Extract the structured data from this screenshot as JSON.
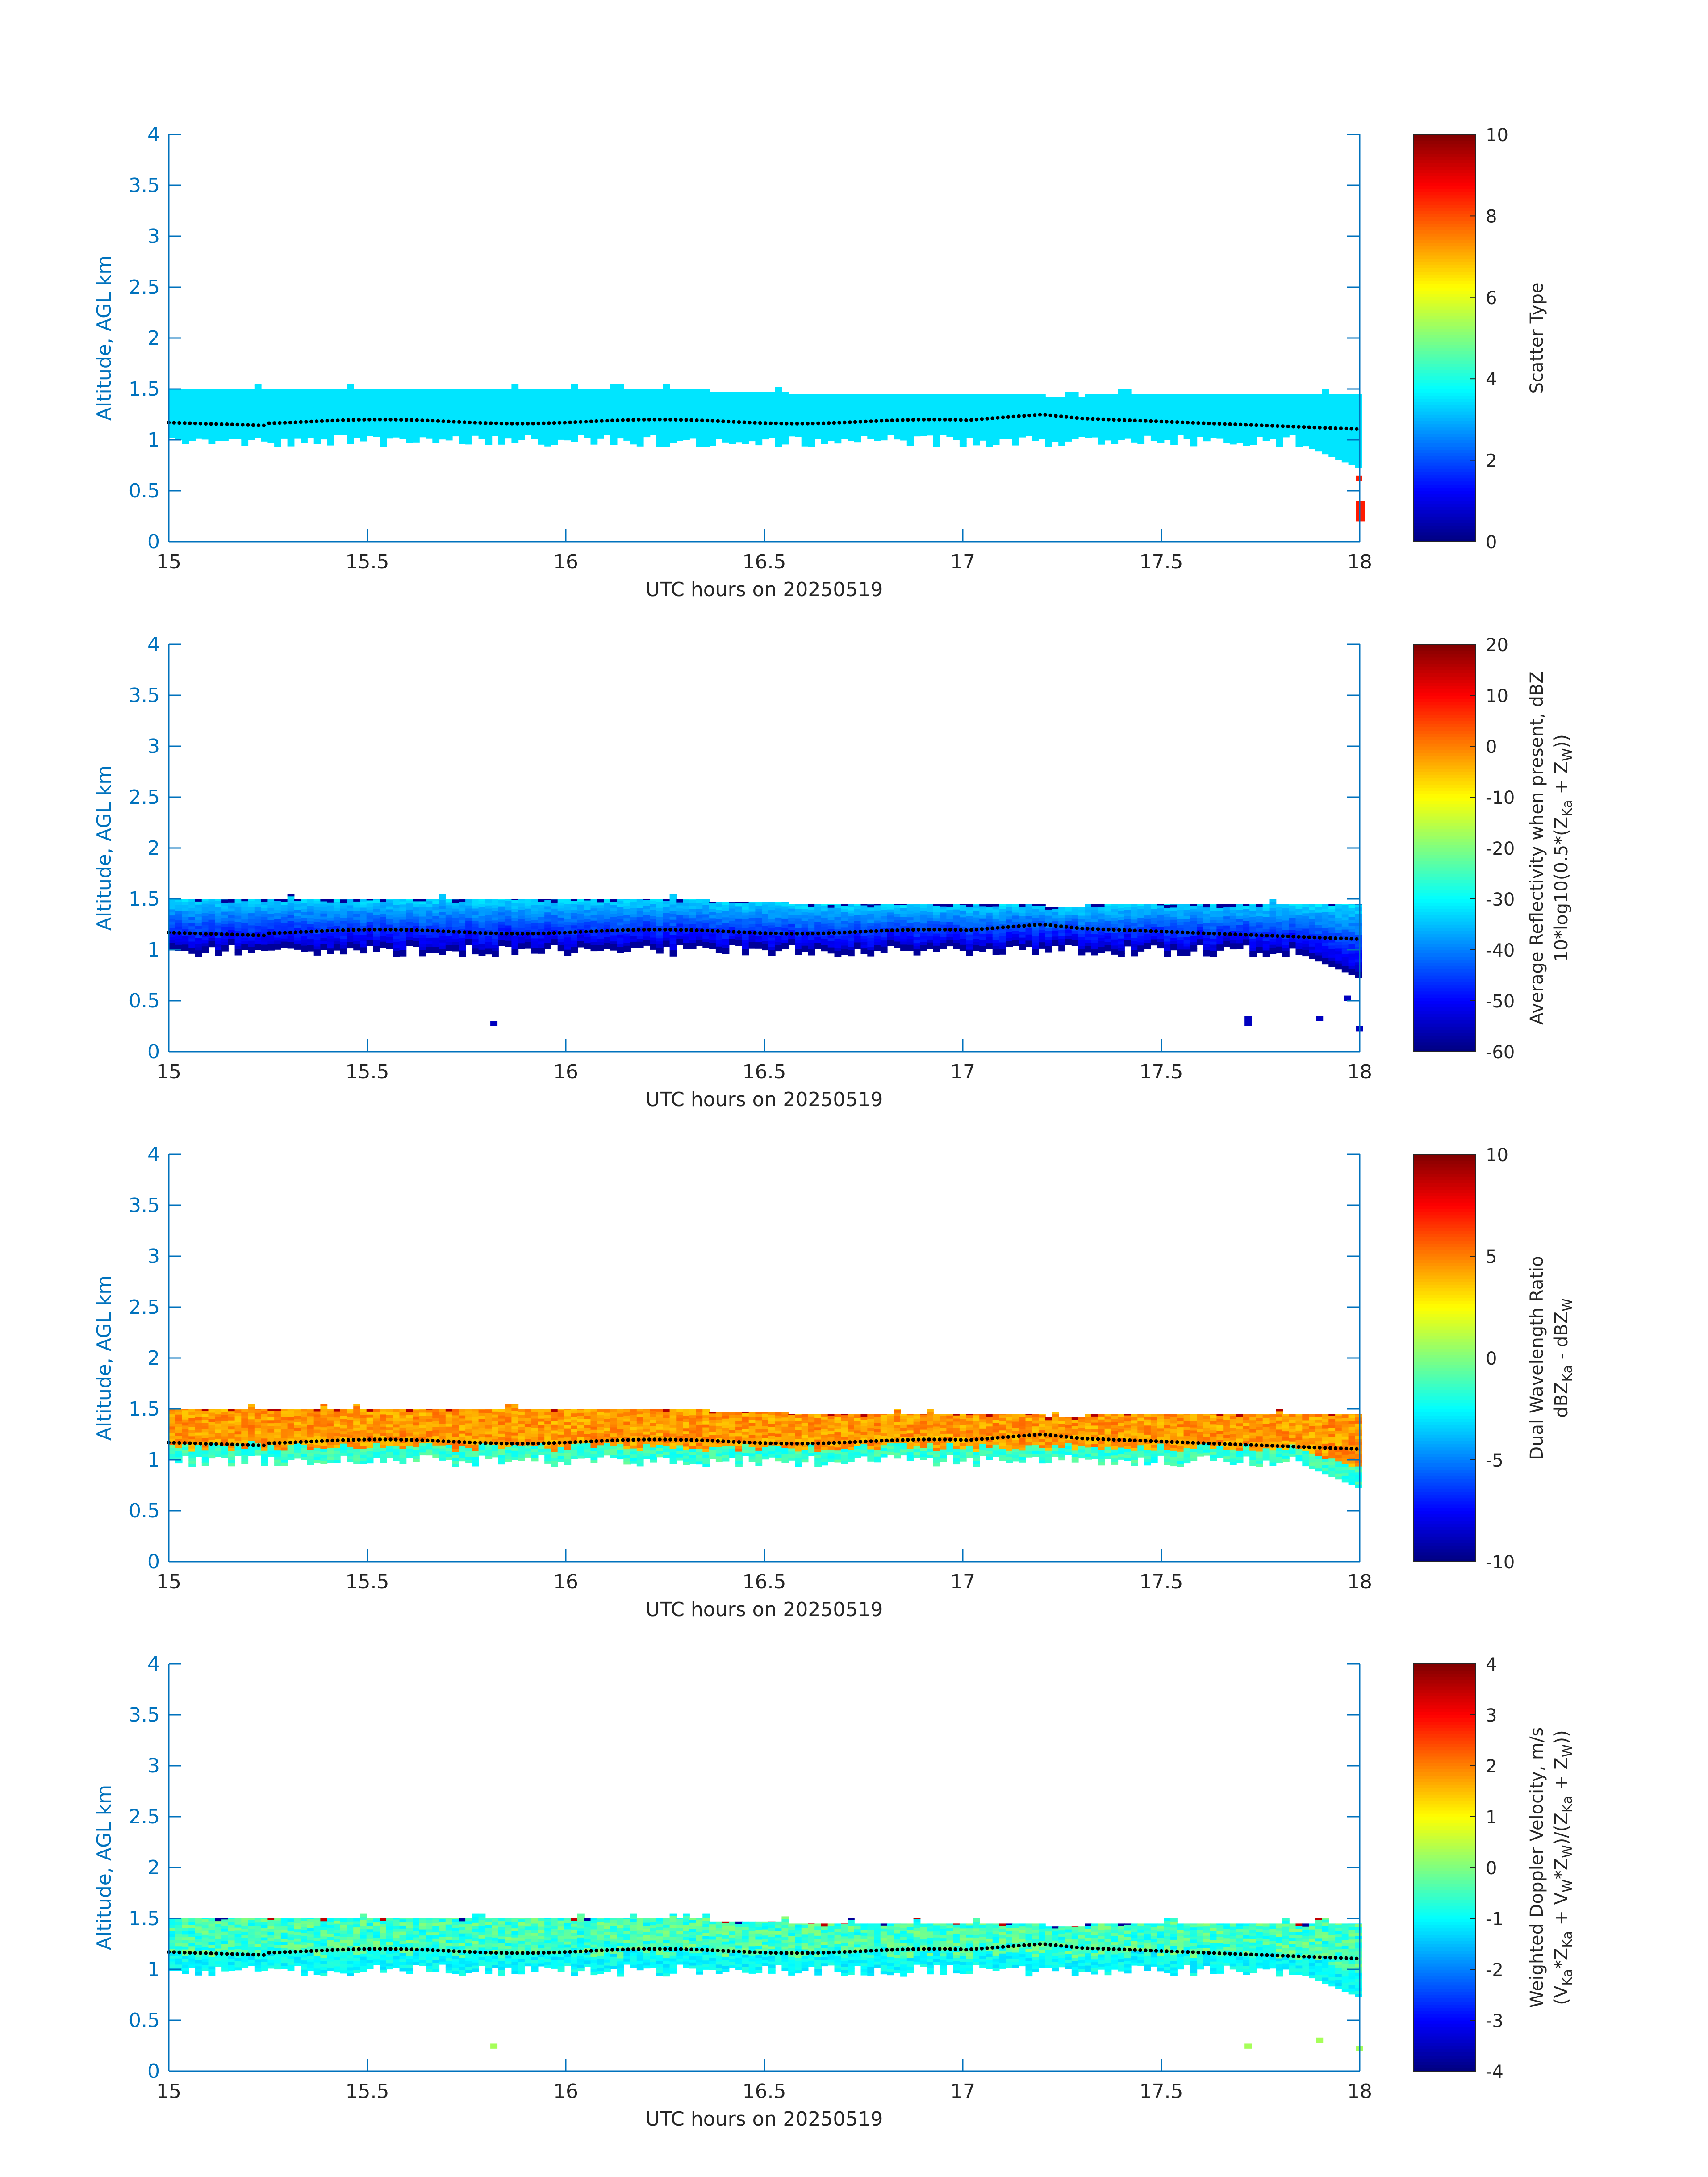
{
  "chart_data": [
    {
      "type": "heatmap",
      "title": "",
      "xlabel": "UTC hours on 20250519",
      "ylabel": "Altitude, AGL km",
      "xlim": [
        15,
        18
      ],
      "ylim": [
        0,
        4
      ],
      "xticks": [
        15,
        15.5,
        16,
        16.5,
        17,
        17.5,
        18
      ],
      "yticks": [
        0,
        0.5,
        1,
        1.5,
        2,
        2.5,
        3,
        3.5,
        4
      ],
      "colorbar": {
        "label_lines": [
          "Scatter Type"
        ],
        "range": [
          0,
          10
        ],
        "ticks": [
          0,
          2,
          4,
          6,
          8,
          10
        ],
        "colormap": "jet"
      },
      "field": {
        "mode": "scatter",
        "cloud_value": 3.5,
        "surface_value": 8.5
      },
      "cloud_base_series": "dotted black line near 1.1–1.25 km"
    },
    {
      "type": "heatmap",
      "title": "",
      "xlabel": "UTC hours on 20250519",
      "ylabel": "Altitude, AGL km",
      "xlim": [
        15,
        18
      ],
      "ylim": [
        0,
        4
      ],
      "xticks": [
        15,
        15.5,
        16,
        16.5,
        17,
        17.5,
        18
      ],
      "yticks": [
        0,
        0.5,
        1,
        1.5,
        2,
        2.5,
        3,
        3.5,
        4
      ],
      "colorbar": {
        "label_lines": [
          "Average Reflectivity when present, dBZ",
          "10*log10(0.5*(Z",
          "Ka",
          " + Z",
          "W",
          "))"
        ],
        "range": [
          -60,
          20
        ],
        "ticks": [
          -60,
          -50,
          -40,
          -30,
          -20,
          -10,
          0,
          10,
          20
        ],
        "colormap": "jet"
      },
      "field": {
        "mode": "refl",
        "top_value": -32,
        "bottom_value": -55,
        "base_value": -58
      }
    },
    {
      "type": "heatmap",
      "title": "",
      "xlabel": "UTC hours on 20250519",
      "ylabel": "Altitude, AGL km",
      "xlim": [
        15,
        18
      ],
      "ylim": [
        0,
        4
      ],
      "xticks": [
        15,
        15.5,
        16,
        16.5,
        17,
        17.5,
        18
      ],
      "yticks": [
        0,
        0.5,
        1,
        1.5,
        2,
        2.5,
        3,
        3.5,
        4
      ],
      "colorbar": {
        "label_lines": [
          "Dual Wavelength Ratio",
          "dBZ",
          "Ka",
          " - dBZ",
          "W"
        ],
        "range": [
          -10,
          10
        ],
        "ticks": [
          -10,
          -5,
          0,
          5,
          10
        ],
        "colormap": "jet"
      },
      "field": {
        "mode": "dwr",
        "core_value": 4.5,
        "low_value": -2.5
      }
    },
    {
      "type": "heatmap",
      "title": "",
      "xlabel": "UTC hours on 20250519",
      "ylabel": "Altitude, AGL km",
      "xlim": [
        15,
        18
      ],
      "ylim": [
        0,
        4
      ],
      "xticks": [
        15,
        15.5,
        16,
        16.5,
        17,
        17.5,
        18
      ],
      "yticks": [
        0,
        0.5,
        1,
        1.5,
        2,
        2.5,
        3,
        3.5,
        4
      ],
      "colorbar": {
        "label_lines": [
          "Weighted Doppler Velocity, m/s",
          "(V",
          "Ka",
          "*Z",
          "Ka",
          " + V",
          "W",
          "*Z",
          "W",
          ")/(Z",
          "Ka",
          " + Z",
          "W",
          "))"
        ],
        "range": [
          -4,
          4
        ],
        "ticks": [
          -4,
          -3,
          -2,
          -1,
          0,
          1,
          2,
          3,
          4
        ],
        "colormap": "jet"
      },
      "field": {
        "mode": "vel",
        "core_value": -0.5,
        "low_value": -1.3
      }
    }
  ],
  "colors": {
    "axis_text": "#0072BD",
    "axis_label": "#0072BD",
    "xlabel_text": "#262626",
    "colorbar_text": "#262626",
    "cloud_base_dots": "#000000"
  }
}
